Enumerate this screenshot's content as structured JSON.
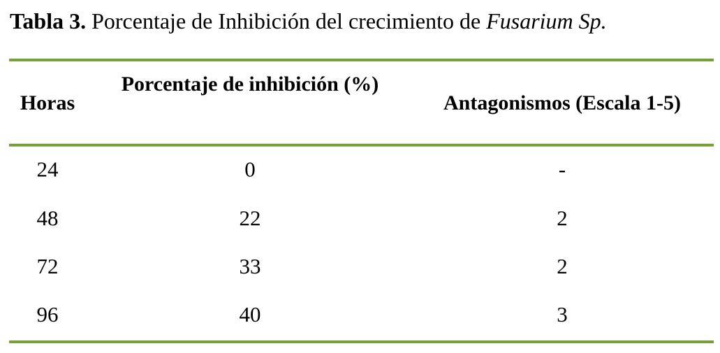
{
  "caption": {
    "label": "Tabla 3.",
    "text": "Porcentaje de Inhibición del crecimiento de",
    "organism": "Fusarium Sp."
  },
  "table": {
    "header": [
      "Horas",
      "Porcentaje de inhibición (%)",
      "Antagonismos (Escala 1-5)"
    ],
    "rows": [
      [
        "24",
        "0",
        "-"
      ],
      [
        "48",
        "22",
        "2"
      ],
      [
        "72",
        "33",
        "2"
      ],
      [
        "96",
        "40",
        "3"
      ]
    ]
  }
}
